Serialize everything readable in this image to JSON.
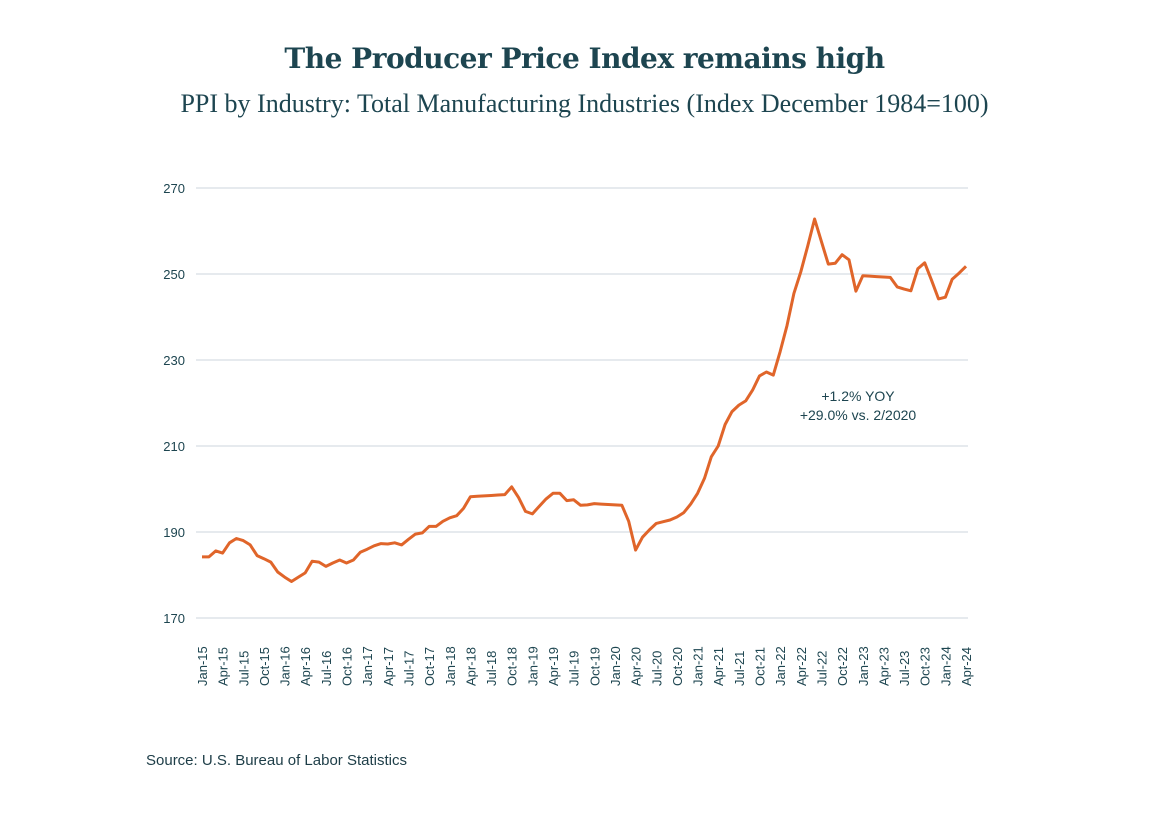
{
  "chart_data": {
    "type": "line",
    "title": "The Producer Price Index remains high",
    "subtitle": "PPI by Industry: Total Manufacturing Industries (Index December 1984=100)",
    "xlabel": "",
    "ylabel": "",
    "ylim": [
      170,
      270
    ],
    "yticks": [
      170,
      190,
      210,
      230,
      250,
      270
    ],
    "grid": true,
    "line_color": "#e0652a",
    "xtick_labels": [
      "Jan-15",
      "Apr-15",
      "Jul-15",
      "Oct-15",
      "Jan-16",
      "Apr-16",
      "Jul-16",
      "Oct-16",
      "Jan-17",
      "Apr-17",
      "Jul-17",
      "Oct-17",
      "Jan-18",
      "Apr-18",
      "Jul-18",
      "Oct-18",
      "Jan-19",
      "Apr-19",
      "Jul-19",
      "Oct-19",
      "Jan-20",
      "Apr-20",
      "Jul-20",
      "Oct-20",
      "Jan-21",
      "Apr-21",
      "Jul-21",
      "Oct-21",
      "Jan-22",
      "Apr-22",
      "Jul-22",
      "Oct-22",
      "Jan-23",
      "Apr-23",
      "Jul-23",
      "Oct-23",
      "Jan-24",
      "Apr-24"
    ],
    "x_start": "Jan-15",
    "x_end": "Apr-24",
    "series": [
      {
        "values": [
          184.2,
          184.2,
          185.6,
          185.1,
          187.5,
          188.5,
          188,
          187,
          184.5,
          183.8,
          183,
          180.7,
          179.5,
          178.5,
          179.5,
          180.5,
          183.2,
          183,
          182,
          182.8,
          183.5,
          182.8,
          183.5,
          185.3,
          186,
          186.8,
          187.3,
          187.2,
          187.5,
          187,
          188.3,
          189.5,
          189.8,
          191.3,
          191.3,
          192.5,
          193.3,
          193.8,
          195.5,
          198.2,
          198.3,
          198.4,
          198.5,
          198.6,
          198.7,
          200.5,
          198,
          194.8,
          194.2,
          196,
          197.7,
          199,
          199,
          197.3,
          197.5,
          196.2,
          196.3,
          196.6,
          196.5,
          196.4,
          196.3,
          196.2,
          192.5,
          185.8,
          188.8,
          190.5,
          192,
          192.4,
          192.8,
          193.5,
          194.5,
          196.5,
          199,
          202.5,
          207.5,
          210,
          215,
          218,
          219.5,
          220.5,
          223,
          226.3,
          227.2,
          226.5,
          232,
          238,
          245.5,
          250.5,
          256.5,
          262.8,
          257.5,
          252.3,
          252.5,
          254.5,
          253.3,
          246,
          249.6,
          249.5,
          249.4,
          249.3,
          249.2,
          247,
          246.5,
          246.1,
          251.2,
          252.6,
          248.5,
          244.2,
          244.6,
          248.8,
          250.2,
          251.8
        ]
      }
    ],
    "annotations": [
      "+1.2% YOY",
      "+29.0% vs. 2/2020"
    ]
  },
  "source": "Source: U.S. Bureau of Labor Statistics"
}
